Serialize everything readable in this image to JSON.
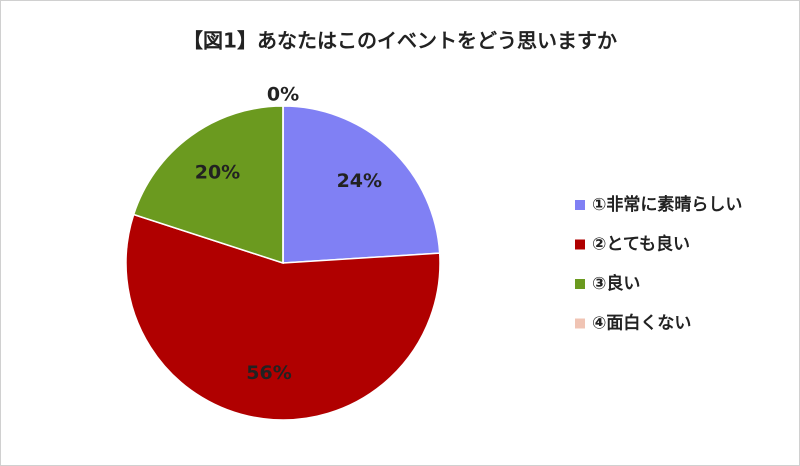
{
  "chart_data": {
    "type": "pie",
    "title": "【図1】あなたはこのイベントをどう思いますか",
    "categories": [
      "①非常に素晴らしい",
      "②とても良い",
      "③良い",
      "④面白くない"
    ],
    "values": [
      24,
      56,
      20,
      0
    ],
    "value_labels": [
      "24%",
      "56%",
      "20%",
      "0%"
    ],
    "colors": [
      "#8080f4",
      "#b00000",
      "#6b9a1f",
      "#f0c4b4"
    ],
    "legend": "right"
  }
}
